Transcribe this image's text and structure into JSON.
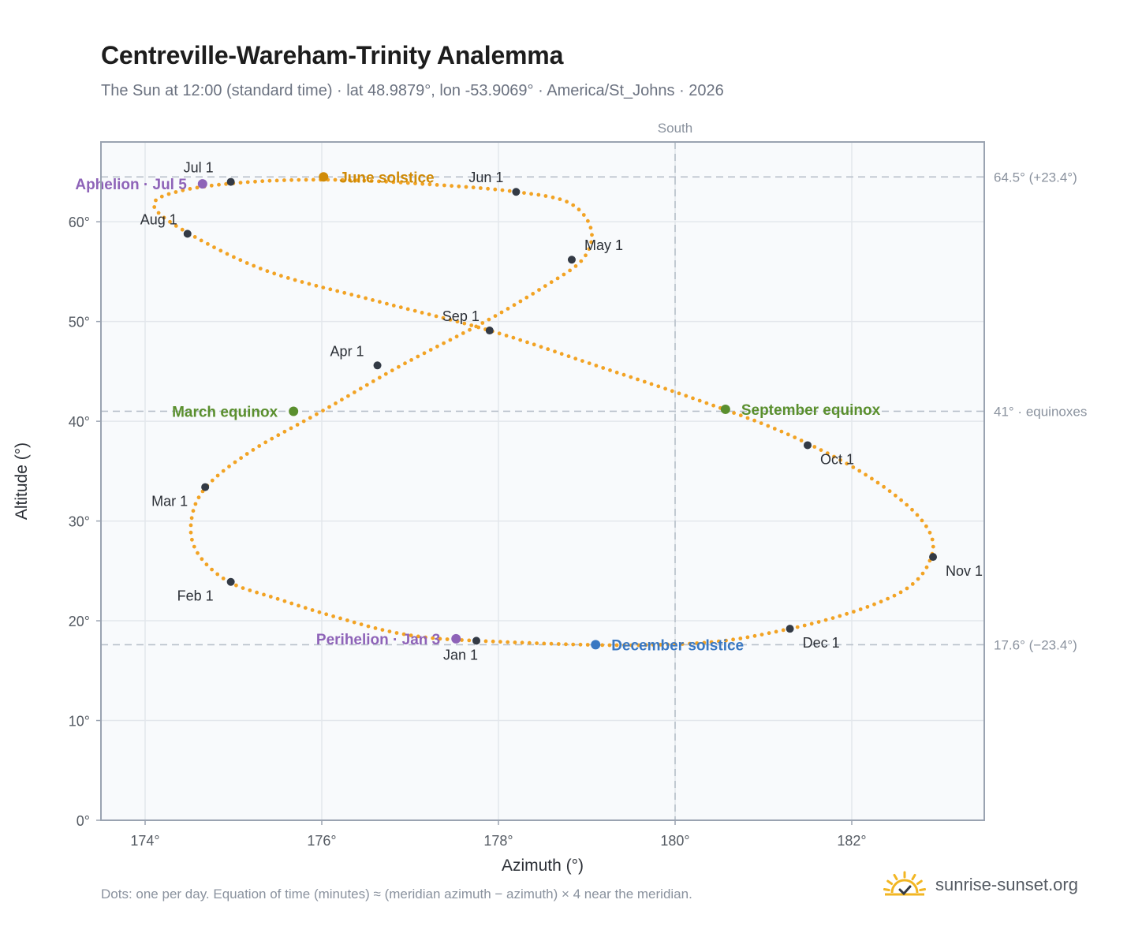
{
  "title": "Centreville-Wareham-Trinity Analemma",
  "subtitle": "The Sun at 12:00 (standard time) · lat 48.9879°, lon -53.9069° · America/St_Johns · 2026",
  "footnote": "Dots: one per day. Equation of time (minutes) ≈ (meridian azimuth − azimuth) × 4 near the meridian.",
  "brand": "sunrise-sunset.org",
  "colors": {
    "curve": "#f2a324",
    "month_dot": "#333a45",
    "june_solstice": "#d08b07",
    "december_solstice": "#3a78c2",
    "equinox": "#5a8f2e",
    "apsis": "#8e63b8",
    "plot_bg": "#f8fafc",
    "grid": "#e3e7ec",
    "axis": "#9aa3b1",
    "reference_line": "#b8c0ca",
    "logo": "#f2b623"
  },
  "chart_data": {
    "type": "scatter",
    "xlabel": "Azimuth (°)",
    "ylabel": "Altitude (°)",
    "xlim": [
      173.5,
      183.5
    ],
    "ylim": [
      0,
      68
    ],
    "x_ticks": [
      174,
      176,
      178,
      180,
      182
    ],
    "x_tick_labels": [
      "174°",
      "176°",
      "178°",
      "180°",
      "182°"
    ],
    "y_ticks": [
      0,
      10,
      20,
      30,
      40,
      50,
      60
    ],
    "y_tick_labels": [
      "0°",
      "10°",
      "20°",
      "30°",
      "40°",
      "50°",
      "60°"
    ],
    "grid": true,
    "series": [
      {
        "marker": "small dot",
        "x": [
          177.75,
          176.9,
          176.15,
          175.5,
          174.95,
          174.6,
          174.52,
          174.68,
          175.2,
          176.0,
          176.9,
          177.85,
          178.5,
          178.95,
          179.05,
          178.8,
          178.2,
          177.3,
          176.2,
          175.2,
          174.4,
          174.1,
          174.5,
          175.4,
          176.6,
          177.9,
          179.1,
          180.3,
          181.3,
          182.2,
          182.8,
          182.9,
          182.5,
          181.3,
          179.8,
          177.75
        ],
        "y": [
          18.0,
          18.7,
          20.4,
          22.2,
          23.9,
          26.7,
          29.8,
          33.3,
          37.0,
          41.0,
          45.6,
          50.0,
          53.4,
          56.2,
          59.2,
          61.9,
          63.0,
          63.7,
          64.2,
          64.0,
          63.1,
          61.6,
          58.8,
          55.0,
          52.1,
          49.1,
          45.6,
          42.0,
          38.6,
          34.4,
          30.0,
          26.4,
          22.6,
          19.2,
          17.6,
          18.0
        ]
      }
    ],
    "month_points": [
      {
        "label": "Jan 1",
        "x": 177.75,
        "y": 18.0,
        "anchor": "below"
      },
      {
        "label": "Feb 1",
        "x": 174.97,
        "y": 23.9,
        "anchor": "below-left"
      },
      {
        "label": "Mar 1",
        "x": 174.68,
        "y": 33.4,
        "anchor": "below-left"
      },
      {
        "label": "Apr 1",
        "x": 176.63,
        "y": 45.6,
        "anchor": "above-left"
      },
      {
        "label": "May 1",
        "x": 178.83,
        "y": 56.2,
        "anchor": "above-right"
      },
      {
        "label": "Jun 1",
        "x": 178.2,
        "y": 63.0,
        "anchor": "above-left"
      },
      {
        "label": "Jul 1",
        "x": 174.97,
        "y": 64.0,
        "anchor": "above-left"
      },
      {
        "label": "Aug 1",
        "x": 174.48,
        "y": 58.8,
        "anchor": "above-left"
      },
      {
        "label": "Sep 1",
        "x": 177.9,
        "y": 49.1,
        "anchor": "above-left"
      },
      {
        "label": "Oct 1",
        "x": 181.5,
        "y": 37.6,
        "anchor": "below-right"
      },
      {
        "label": "Nov 1",
        "x": 182.92,
        "y": 26.4,
        "anchor": "below-right"
      },
      {
        "label": "Dec 1",
        "x": 181.3,
        "y": 19.2,
        "anchor": "below-right"
      }
    ],
    "special_points": [
      {
        "label": "June solstice",
        "x": 176.02,
        "y": 64.5,
        "color_key": "june_solstice",
        "anchor": "right"
      },
      {
        "label": "December solstice",
        "x": 179.1,
        "y": 17.6,
        "color_key": "december_solstice",
        "anchor": "right"
      },
      {
        "label": "March equinox",
        "x": 175.68,
        "y": 41.0,
        "color_key": "equinox",
        "anchor": "left"
      },
      {
        "label": "September equinox",
        "x": 180.57,
        "y": 41.2,
        "color_key": "equinox",
        "anchor": "right"
      },
      {
        "label": "Aphelion · Jul 5",
        "x": 174.65,
        "y": 63.8,
        "color_key": "apsis",
        "anchor": "left"
      },
      {
        "label": "Perihelion · Jan 3",
        "x": 177.52,
        "y": 18.2,
        "color_key": "apsis",
        "anchor": "left"
      }
    ],
    "reference_lines": [
      {
        "orientation": "horizontal",
        "value": 64.5,
        "label": "64.5° (+23.4°)"
      },
      {
        "orientation": "horizontal",
        "value": 41.0,
        "label": "41° · equinoxes"
      },
      {
        "orientation": "horizontal",
        "value": 17.6,
        "label": "17.6° (−23.4°)"
      },
      {
        "orientation": "vertical",
        "value": 180,
        "label": "South"
      }
    ]
  }
}
